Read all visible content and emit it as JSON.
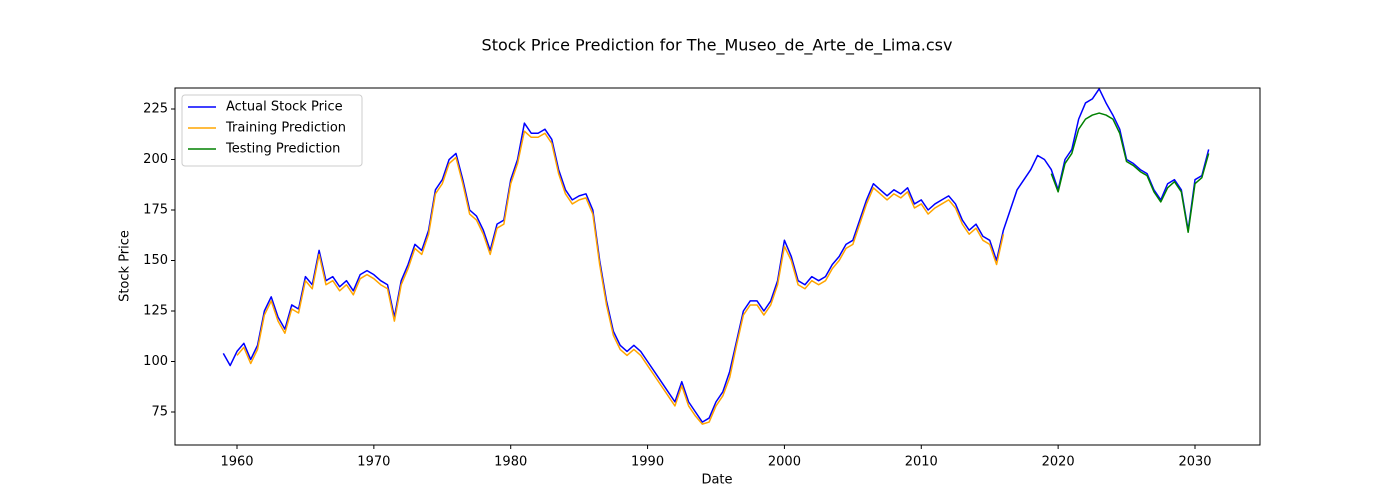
{
  "chart_data": {
    "type": "line",
    "title": "Stock Price Prediction for The_Museo_de_Arte_de_Lima.csv",
    "x_label": "Date",
    "y_label": "Stock Price",
    "xlim": [
      1955.47,
      2034.75
    ],
    "ylim": [
      58.66,
      235.4
    ],
    "xticks": [
      1960,
      1970,
      1980,
      1990,
      2000,
      2010,
      2020,
      2030
    ],
    "yticks": [
      75,
      100,
      125,
      150,
      175,
      200,
      225
    ],
    "grid": false,
    "legend": "upper left",
    "series": [
      {
        "name": "Actual Stock Price",
        "color": "#0000ff",
        "x": [
          1959,
          1959.5,
          1960,
          1960.5,
          1961,
          1961.5,
          1962,
          1962.5,
          1963,
          1963.5,
          1964,
          1964.5,
          1965,
          1965.5,
          1966,
          1966.5,
          1967,
          1967.5,
          1968,
          1968.5,
          1969,
          1969.5,
          1970,
          1970.5,
          1971,
          1971.5,
          1972,
          1972.5,
          1973,
          1973.5,
          1974,
          1974.5,
          1975,
          1975.5,
          1976,
          1976.5,
          1977,
          1977.5,
          1978,
          1978.5,
          1979,
          1979.5,
          1980,
          1980.5,
          1981,
          1981.5,
          1982,
          1982.5,
          1983,
          1983.5,
          1984,
          1984.5,
          1985,
          1985.5,
          1986,
          1986.5,
          1987,
          1987.5,
          1988,
          1988.5,
          1989,
          1989.5,
          1990,
          1990.5,
          1991,
          1991.5,
          1992,
          1992.5,
          1993,
          1993.5,
          1994,
          1994.5,
          1995,
          1995.5,
          1996,
          1996.5,
          1997,
          1997.5,
          1998,
          1998.5,
          1999,
          1999.5,
          2000,
          2000.5,
          2001,
          2001.5,
          2002,
          2002.5,
          2003,
          2003.5,
          2004,
          2004.5,
          2005,
          2005.5,
          2006,
          2006.5,
          2007,
          2007.5,
          2008,
          2008.5,
          2009,
          2009.5,
          2010,
          2010.5,
          2011,
          2011.5,
          2012,
          2012.5,
          2013,
          2013.5,
          2014,
          2014.5,
          2015,
          2015.5,
          2016,
          2016.5,
          2017,
          2017.5,
          2018,
          2018.5,
          2019,
          2019.5,
          2020,
          2020.5,
          2021,
          2021.5,
          2022,
          2022.5,
          2023,
          2023.5,
          2024,
          2024.5,
          2025,
          2025.5,
          2026,
          2026.5,
          2027,
          2027.5,
          2028,
          2028.5,
          2029,
          2029.5,
          2030,
          2030.5,
          2031
        ],
        "values": [
          104,
          98,
          105,
          109,
          101,
          108,
          125,
          132,
          122,
          116,
          128,
          126,
          142,
          138,
          155,
          140,
          142,
          137,
          140,
          135,
          143,
          145,
          143,
          140,
          138,
          122,
          140,
          148,
          158,
          155,
          165,
          185,
          190,
          200,
          203,
          190,
          175,
          172,
          165,
          155,
          168,
          170,
          190,
          200,
          218,
          213,
          213,
          215,
          210,
          195,
          185,
          180,
          182,
          183,
          175,
          150,
          130,
          115,
          108,
          105,
          108,
          105,
          100,
          95,
          90,
          85,
          80,
          90,
          80,
          75,
          70,
          72,
          80,
          85,
          95,
          110,
          125,
          130,
          130,
          125,
          130,
          140,
          160,
          152,
          140,
          138,
          142,
          140,
          142,
          148,
          152,
          158,
          160,
          170,
          180,
          188,
          185,
          182,
          185,
          183,
          186,
          178,
          180,
          175,
          178,
          180,
          182,
          178,
          170,
          165,
          168,
          162,
          160,
          150,
          165,
          175,
          185,
          190,
          195,
          202,
          200,
          195,
          185,
          200,
          205,
          220,
          228,
          230,
          235,
          228,
          222,
          215,
          200,
          198,
          195,
          193,
          185,
          180,
          188,
          190,
          185,
          165,
          190,
          192,
          205
        ]
      },
      {
        "name": "Training Prediction",
        "color": "#ffa500",
        "x": [
          1960,
          1960.5,
          1961,
          1961.5,
          1962,
          1962.5,
          1963,
          1963.5,
          1964,
          1964.5,
          1965,
          1965.5,
          1966,
          1966.5,
          1967,
          1967.5,
          1968,
          1968.5,
          1969,
          1969.5,
          1970,
          1970.5,
          1971,
          1971.5,
          1972,
          1972.5,
          1973,
          1973.5,
          1974,
          1974.5,
          1975,
          1975.5,
          1976,
          1976.5,
          1977,
          1977.5,
          1978,
          1978.5,
          1979,
          1979.5,
          1980,
          1980.5,
          1981,
          1981.5,
          1982,
          1982.5,
          1983,
          1983.5,
          1984,
          1984.5,
          1985,
          1985.5,
          1986,
          1986.5,
          1987,
          1987.5,
          1988,
          1988.5,
          1989,
          1989.5,
          1990,
          1990.5,
          1991,
          1991.5,
          1992,
          1992.5,
          1993,
          1993.5,
          1994,
          1994.5,
          1995,
          1995.5,
          1996,
          1996.5,
          1997,
          1997.5,
          1998,
          1998.5,
          1999,
          1999.5,
          2000,
          2000.5,
          2001,
          2001.5,
          2002,
          2002.5,
          2003,
          2003.5,
          2004,
          2004.5,
          2005,
          2005.5,
          2006,
          2006.5,
          2007,
          2007.5,
          2008,
          2008.5,
          2009,
          2009.5,
          2010,
          2010.5,
          2011,
          2011.5,
          2012,
          2012.5,
          2013,
          2013.5,
          2014,
          2014.5,
          2015,
          2015.5,
          2016
        ],
        "values": [
          103,
          107,
          99,
          106,
          123,
          130,
          120,
          114,
          126,
          124,
          140,
          136,
          153,
          138,
          140,
          135,
          138,
          133,
          141,
          143,
          141,
          138,
          136,
          120,
          138,
          146,
          156,
          153,
          163,
          183,
          188,
          198,
          201,
          188,
          173,
          170,
          163,
          153,
          166,
          168,
          188,
          198,
          214,
          211,
          211,
          213,
          208,
          193,
          183,
          178,
          180,
          181,
          173,
          148,
          128,
          113,
          106,
          103,
          106,
          103,
          98,
          93,
          88,
          83,
          78,
          88,
          78,
          73,
          69,
          70,
          78,
          83,
          92,
          108,
          123,
          128,
          128,
          123,
          128,
          138,
          157,
          150,
          138,
          136,
          140,
          138,
          140,
          146,
          150,
          156,
          158,
          168,
          178,
          186,
          183,
          180,
          183,
          181,
          184,
          176,
          178,
          173,
          176,
          178,
          180,
          176,
          168,
          163,
          166,
          160,
          158,
          148,
          163
        ]
      },
      {
        "name": "Testing Prediction",
        "color": "#008000",
        "x": [
          2019.5,
          2020,
          2020.5,
          2021,
          2021.5,
          2022,
          2022.5,
          2023,
          2023.5,
          2024,
          2024.5,
          2025,
          2025.5,
          2026,
          2026.5,
          2027,
          2027.5,
          2028,
          2028.5,
          2029,
          2029.5,
          2030,
          2030.5,
          2031
        ],
        "values": [
          193,
          184,
          198,
          203,
          215,
          220,
          222,
          223,
          222,
          220,
          213,
          199,
          197,
          194,
          192,
          184,
          179,
          186,
          189,
          184,
          164,
          188,
          191,
          203
        ]
      }
    ]
  }
}
